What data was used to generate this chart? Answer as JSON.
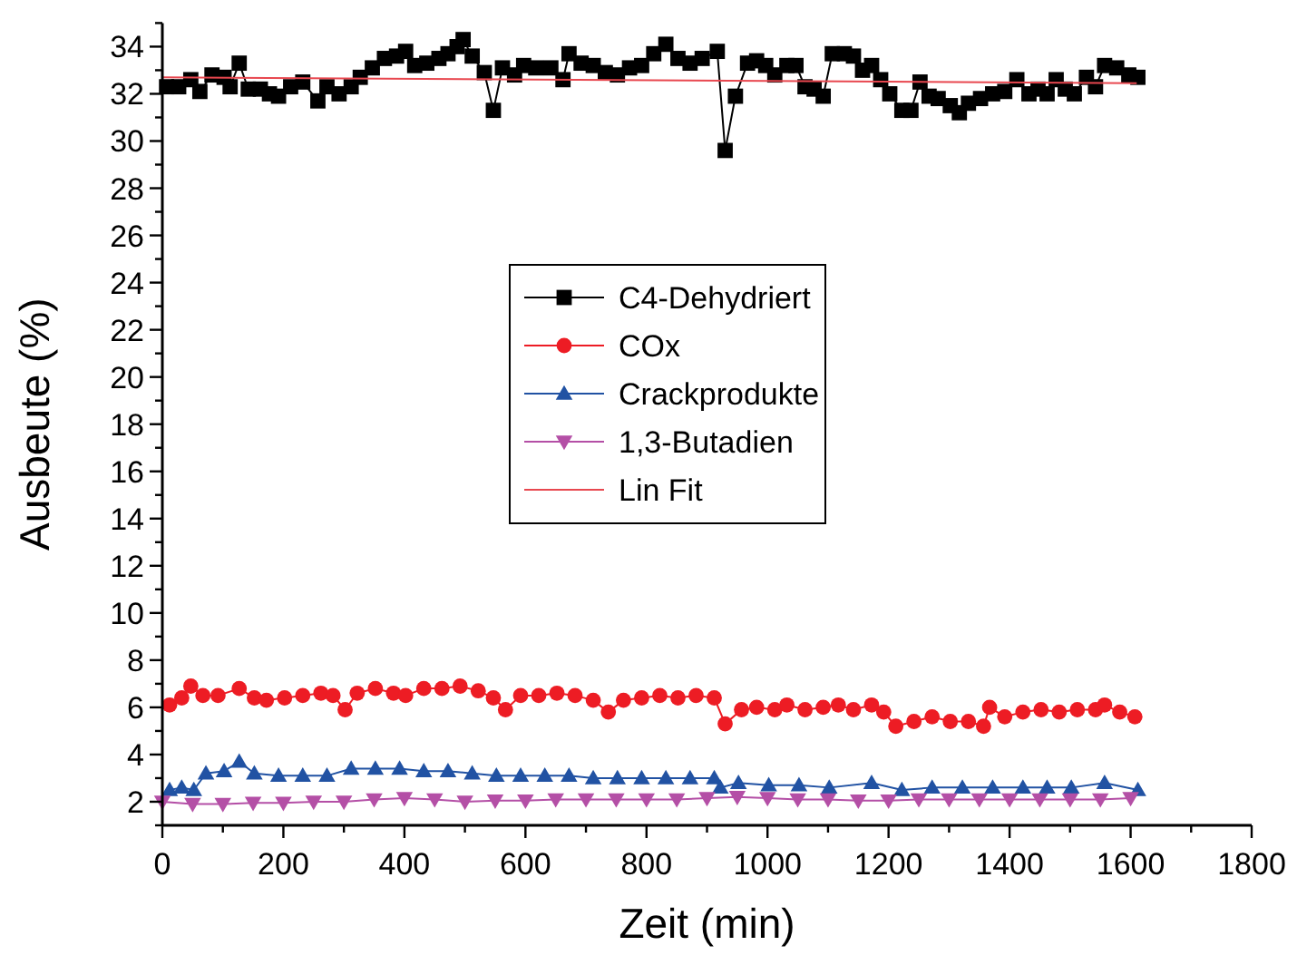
{
  "chart_data": {
    "type": "line",
    "xlabel": "Zeit (min)",
    "ylabel": "Ausbeute (%)",
    "xlim": [
      0,
      1800
    ],
    "ylim": [
      1,
      35
    ],
    "xticks": [
      0,
      {
        "value": 100,
        "label": null
      },
      200,
      {
        "value": 300,
        "label": null
      },
      400,
      {
        "value": 500,
        "label": null
      },
      600,
      {
        "value": 700,
        "label": null
      },
      800,
      {
        "value": 900,
        "label": null
      },
      1000,
      {
        "value": 1100,
        "label": null
      },
      1200,
      {
        "value": 1300,
        "label": null
      },
      1400,
      {
        "value": 1500,
        "label": null
      },
      1600,
      {
        "value": 1700,
        "label": null
      },
      1800
    ],
    "yticks": [
      {
        "value": 1,
        "label": null
      },
      2,
      {
        "value": 3,
        "label": null
      },
      4,
      {
        "value": 5,
        "label": null
      },
      6,
      {
        "value": 7,
        "label": null
      },
      8,
      {
        "value": 9,
        "label": null
      },
      10,
      {
        "value": 11,
        "label": null
      },
      12,
      {
        "value": 13,
        "label": null
      },
      14,
      {
        "value": 15,
        "label": null
      },
      16,
      {
        "value": 17,
        "label": null
      },
      18,
      {
        "value": 19,
        "label": null
      },
      20,
      {
        "value": 21,
        "label": null
      },
      22,
      {
        "value": 23,
        "label": null
      },
      24,
      {
        "value": 25,
        "label": null
      },
      26,
      {
        "value": 27,
        "label": null
      },
      28,
      {
        "value": 29,
        "label": null
      },
      30,
      {
        "value": 31,
        "label": null
      },
      32,
      {
        "value": 33,
        "label": null
      },
      34,
      {
        "value": 35,
        "label": null
      }
    ],
    "legend": "center",
    "grid": false,
    "series": [
      {
        "name": "C4-Dehydriert",
        "color": "#000000",
        "marker": "square",
        "x": [
          7,
          27,
          47,
          62,
          82,
          102,
          112,
          127,
          142,
          162,
          177,
          192,
          212,
          232,
          257,
          272,
          292,
          312,
          327,
          347,
          367,
          387,
          402,
          417,
          437,
          457,
          472,
          487,
          497,
          512,
          532,
          547,
          562,
          582,
          597,
          617,
          642,
          662,
          672,
          692,
          712,
          732,
          752,
          772,
          792,
          812,
          832,
          852,
          872,
          892,
          917,
          930,
          947,
          967,
          982,
          997,
          1012,
          1032,
          1047,
          1062,
          1077,
          1092,
          1107,
          1127,
          1142,
          1157,
          1172,
          1187,
          1202,
          1222,
          1237,
          1252,
          1267,
          1282,
          1302,
          1317,
          1332,
          1352,
          1372,
          1392,
          1412,
          1432,
          1447,
          1462,
          1477,
          1492,
          1507,
          1527,
          1542,
          1557,
          1577,
          1597,
          1612
        ],
        "values": [
          32.3,
          32.3,
          32.6,
          32.1,
          32.8,
          32.7,
          32.3,
          33.3,
          32.2,
          32.2,
          32.0,
          31.9,
          32.3,
          32.5,
          31.7,
          32.3,
          32.0,
          32.3,
          32.7,
          33.1,
          33.5,
          33.6,
          33.8,
          33.2,
          33.3,
          33.5,
          33.7,
          34.0,
          34.3,
          33.6,
          32.9,
          31.3,
          33.1,
          32.8,
          33.2,
          33.1,
          33.1,
          32.6,
          33.7,
          33.3,
          33.2,
          32.9,
          32.8,
          33.1,
          33.2,
          33.7,
          34.1,
          33.5,
          33.3,
          33.5,
          33.8,
          29.6,
          31.9,
          33.3,
          33.4,
          33.2,
          32.8,
          33.2,
          33.2,
          32.3,
          32.2,
          31.9,
          33.7,
          33.7,
          33.6,
          33.0,
          33.2,
          32.6,
          32.0,
          31.3,
          31.3,
          32.5,
          31.9,
          31.8,
          31.5,
          31.2,
          31.6,
          31.8,
          32.0,
          32.1,
          32.6,
          32.0,
          32.2,
          32.0,
          32.6,
          32.2,
          32.0,
          32.7,
          32.3,
          33.2,
          33.1,
          32.8,
          32.7
        ]
      },
      {
        "name": "COx",
        "color": "#ed1c24",
        "marker": "circle",
        "x": [
          12,
          32,
          47,
          67,
          92,
          127,
          152,
          172,
          202,
          232,
          262,
          282,
          302,
          322,
          352,
          382,
          402,
          432,
          462,
          492,
          522,
          547,
          567,
          592,
          622,
          652,
          682,
          712,
          737,
          762,
          792,
          822,
          852,
          882,
          912,
          930,
          957,
          982,
          1012,
          1032,
          1062,
          1092,
          1117,
          1142,
          1172,
          1192,
          1212,
          1242,
          1272,
          1302,
          1332,
          1357,
          1367,
          1392,
          1422,
          1452,
          1482,
          1512,
          1542,
          1557,
          1582,
          1607
        ],
        "values": [
          6.1,
          6.4,
          6.9,
          6.5,
          6.5,
          6.8,
          6.4,
          6.3,
          6.4,
          6.5,
          6.6,
          6.5,
          5.9,
          6.6,
          6.8,
          6.6,
          6.5,
          6.8,
          6.8,
          6.9,
          6.7,
          6.4,
          5.9,
          6.5,
          6.5,
          6.6,
          6.5,
          6.3,
          5.8,
          6.3,
          6.4,
          6.5,
          6.4,
          6.5,
          6.4,
          5.3,
          5.9,
          6.0,
          5.9,
          6.1,
          5.9,
          6.0,
          6.1,
          5.9,
          6.1,
          5.8,
          5.2,
          5.4,
          5.6,
          5.4,
          5.4,
          5.2,
          6.0,
          5.6,
          5.8,
          5.9,
          5.8,
          5.9,
          5.9,
          6.1,
          5.8,
          5.6
        ]
      },
      {
        "name": "Crackprodukte",
        "color": "#2152a3",
        "marker": "triangle",
        "x": [
          12,
          32,
          52,
          72,
          102,
          127,
          152,
          192,
          232,
          272,
          312,
          352,
          392,
          432,
          472,
          512,
          552,
          592,
          632,
          672,
          712,
          752,
          792,
          832,
          872,
          912,
          922,
          952,
          1002,
          1052,
          1102,
          1172,
          1222,
          1272,
          1322,
          1372,
          1422,
          1462,
          1502,
          1557,
          1612
        ],
        "values": [
          2.5,
          2.6,
          2.5,
          3.2,
          3.3,
          3.7,
          3.2,
          3.1,
          3.1,
          3.1,
          3.4,
          3.4,
          3.4,
          3.3,
          3.3,
          3.2,
          3.1,
          3.1,
          3.1,
          3.1,
          3.0,
          3.0,
          3.0,
          3.0,
          3.0,
          3.0,
          2.6,
          2.8,
          2.7,
          2.7,
          2.6,
          2.8,
          2.5,
          2.6,
          2.6,
          2.6,
          2.6,
          2.6,
          2.6,
          2.8,
          2.5
        ]
      },
      {
        "name": "1,3-Butadien",
        "color": "#b44fa6",
        "marker": "triangle-down",
        "x": [
          0,
          50,
          100,
          150,
          200,
          250,
          300,
          350,
          400,
          450,
          500,
          550,
          600,
          650,
          700,
          750,
          800,
          850,
          900,
          950,
          1000,
          1050,
          1100,
          1150,
          1200,
          1250,
          1300,
          1350,
          1400,
          1450,
          1500,
          1550,
          1600
        ],
        "values": [
          2.0,
          1.9,
          1.9,
          1.95,
          1.95,
          2.0,
          2.0,
          2.1,
          2.15,
          2.1,
          2.0,
          2.05,
          2.05,
          2.1,
          2.1,
          2.1,
          2.1,
          2.1,
          2.15,
          2.2,
          2.15,
          2.1,
          2.1,
          2.05,
          2.05,
          2.1,
          2.1,
          2.1,
          2.1,
          2.1,
          2.1,
          2.1,
          2.15
        ]
      },
      {
        "name": "Lin Fit",
        "color": "#e8474f",
        "marker": "none",
        "x": [
          0,
          1610
        ],
        "values": [
          32.7,
          32.45
        ]
      }
    ]
  }
}
